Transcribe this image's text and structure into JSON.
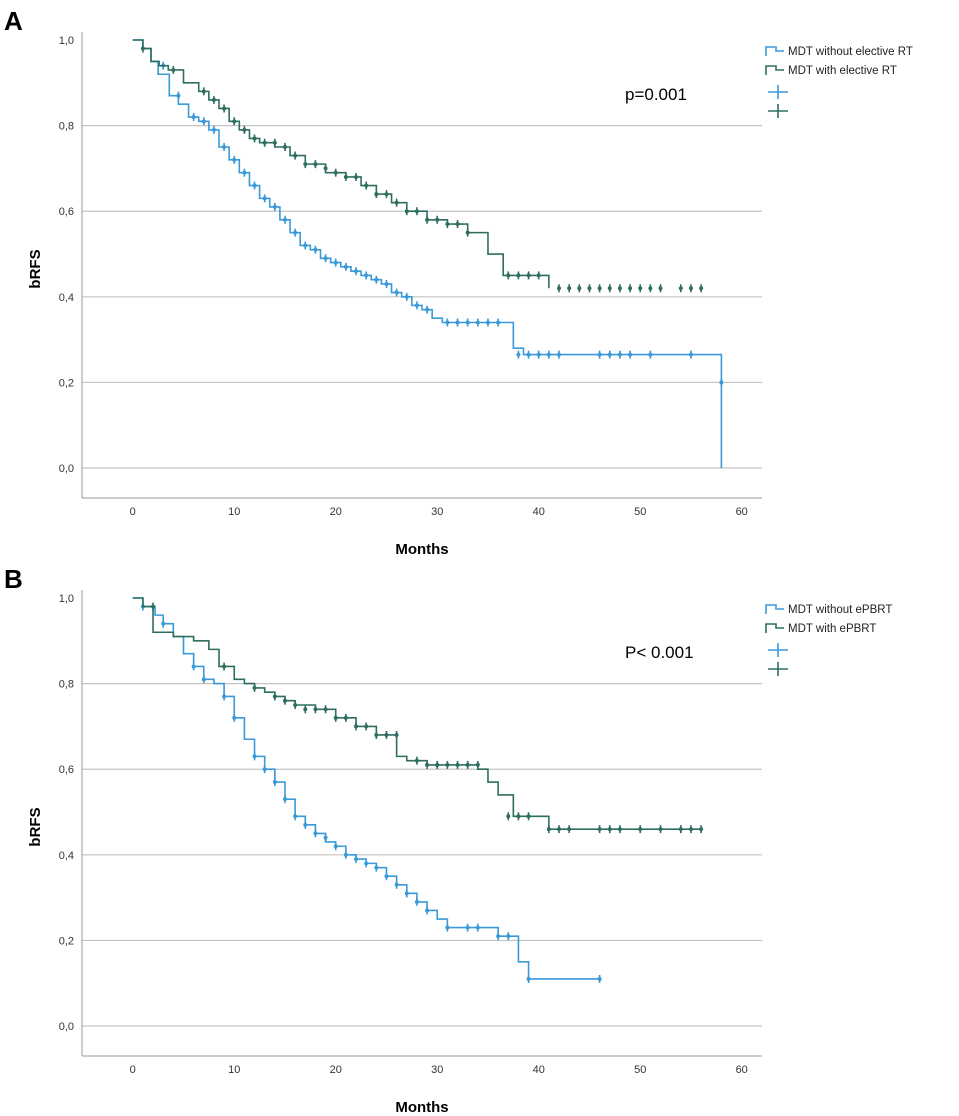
{
  "chart_data": [
    {
      "type": "line",
      "panel_label": "A",
      "xlabel": "Months",
      "ylabel": "bRFS",
      "xlim": [
        -5,
        62
      ],
      "ylim": [
        -0.07,
        1.0
      ],
      "x_ticks": [
        "0",
        "10",
        "20",
        "30",
        "40",
        "50",
        "60"
      ],
      "x_tick_values": [
        0,
        10,
        20,
        30,
        40,
        50,
        60
      ],
      "y_ticks": [
        "0,0",
        "0,2",
        "0,4",
        "0,6",
        "0,8",
        "1,0"
      ],
      "y_tick_values": [
        0.0,
        0.2,
        0.4,
        0.6,
        0.8,
        1.0
      ],
      "gridlines": "horizontal",
      "annotation": "p=0.001",
      "legend_position": "top-right",
      "series": [
        {
          "name": "MDT without elective RT",
          "color": "#3a9ad9",
          "step_x": [
            0,
            1,
            1.8,
            2.5,
            3.6,
            4.5,
            5.5,
            6.5,
            7.5,
            8.5,
            9.5,
            10.5,
            11.5,
            12.5,
            13.5,
            14.5,
            15.5,
            16.5,
            17.5,
            18.5,
            19.5,
            20.5,
            21.5,
            22.5,
            23.5,
            24.5,
            25.5,
            26.5,
            27.5,
            28.5,
            29.5,
            30.5,
            31.5,
            34,
            37.5,
            38.5,
            58,
            58
          ],
          "step_y": [
            1.0,
            0.98,
            0.95,
            0.92,
            0.87,
            0.85,
            0.82,
            0.81,
            0.79,
            0.75,
            0.72,
            0.69,
            0.66,
            0.63,
            0.61,
            0.58,
            0.55,
            0.52,
            0.51,
            0.49,
            0.48,
            0.47,
            0.46,
            0.45,
            0.44,
            0.43,
            0.41,
            0.4,
            0.38,
            0.37,
            0.35,
            0.34,
            0.34,
            0.34,
            0.28,
            0.265,
            0.265,
            0.0
          ],
          "censor_x": [
            3,
            4.5,
            6,
            7,
            8,
            9,
            10,
            11,
            12,
            13,
            14,
            15,
            16,
            17,
            18,
            19,
            20,
            21,
            22,
            23,
            24,
            25,
            26,
            27,
            28,
            29,
            31,
            32,
            33,
            34,
            35,
            36,
            38,
            39,
            40,
            41,
            42,
            46,
            47,
            48,
            49,
            51,
            55,
            58
          ],
          "censor_y": [
            0.94,
            0.87,
            0.82,
            0.81,
            0.79,
            0.75,
            0.72,
            0.69,
            0.66,
            0.63,
            0.61,
            0.58,
            0.55,
            0.52,
            0.51,
            0.49,
            0.48,
            0.47,
            0.46,
            0.45,
            0.44,
            0.43,
            0.41,
            0.4,
            0.38,
            0.37,
            0.34,
            0.34,
            0.34,
            0.34,
            0.34,
            0.34,
            0.265,
            0.265,
            0.265,
            0.265,
            0.265,
            0.265,
            0.265,
            0.265,
            0.265,
            0.265,
            0.265,
            0.2
          ]
        },
        {
          "name": "MDT with elective RT",
          "color": "#2e6e60",
          "step_x": [
            0,
            1,
            1.8,
            2.6,
            3.5,
            5,
            6.5,
            7.5,
            8.5,
            9.5,
            10.5,
            11.5,
            12.5,
            14,
            15.5,
            17,
            19,
            21,
            22.5,
            24,
            25.5,
            27,
            29,
            31,
            33,
            35,
            36.5,
            41
          ],
          "step_y": [
            1.0,
            0.98,
            0.95,
            0.94,
            0.93,
            0.9,
            0.88,
            0.86,
            0.84,
            0.81,
            0.79,
            0.77,
            0.76,
            0.75,
            0.73,
            0.71,
            0.69,
            0.68,
            0.66,
            0.64,
            0.62,
            0.6,
            0.58,
            0.57,
            0.55,
            0.5,
            0.45,
            0.42
          ],
          "censor_x": [
            1,
            4,
            7,
            8,
            9,
            10,
            11,
            12,
            13,
            14,
            15,
            16,
            17,
            18,
            19,
            20,
            21,
            22,
            23,
            24,
            25,
            26,
            27,
            28,
            29,
            30,
            31,
            32,
            33,
            37,
            38,
            39,
            40,
            42,
            43,
            44,
            45,
            46,
            47,
            48,
            49,
            50,
            51,
            52,
            54,
            55,
            56
          ],
          "censor_y": [
            0.98,
            0.93,
            0.88,
            0.86,
            0.84,
            0.81,
            0.79,
            0.77,
            0.76,
            0.76,
            0.75,
            0.73,
            0.71,
            0.71,
            0.7,
            0.69,
            0.68,
            0.68,
            0.66,
            0.64,
            0.64,
            0.62,
            0.6,
            0.6,
            0.58,
            0.58,
            0.57,
            0.57,
            0.55,
            0.45,
            0.45,
            0.45,
            0.45,
            0.42,
            0.42,
            0.42,
            0.42,
            0.42,
            0.42,
            0.42,
            0.42,
            0.42,
            0.42,
            0.42,
            0.42,
            0.42,
            0.42
          ]
        }
      ]
    },
    {
      "type": "line",
      "panel_label": "B",
      "xlabel": "Months",
      "ylabel": "bRFS",
      "xlim": [
        -5,
        62
      ],
      "ylim": [
        -0.07,
        1.0
      ],
      "x_ticks": [
        "0",
        "10",
        "20",
        "30",
        "40",
        "50",
        "60"
      ],
      "x_tick_values": [
        0,
        10,
        20,
        30,
        40,
        50,
        60
      ],
      "y_ticks": [
        "0,0",
        "0,2",
        "0,4",
        "0,6",
        "0,8",
        "1,0"
      ],
      "y_tick_values": [
        0.0,
        0.2,
        0.4,
        0.6,
        0.8,
        1.0
      ],
      "gridlines": "horizontal",
      "annotation": "P< 0.001",
      "legend_position": "top-right",
      "series": [
        {
          "name": "MDT without ePBRT",
          "color": "#3a9ad9",
          "step_x": [
            0,
            1,
            2.2,
            3,
            4,
            5,
            6,
            7,
            8,
            9,
            10,
            11,
            12,
            13,
            14,
            15,
            16,
            17,
            18,
            19,
            20,
            21,
            22,
            23,
            24,
            25,
            26,
            27,
            28,
            29,
            30,
            31,
            32,
            34,
            36,
            38,
            38.5,
            39,
            46
          ],
          "step_y": [
            1.0,
            0.98,
            0.96,
            0.94,
            0.91,
            0.87,
            0.84,
            0.81,
            0.8,
            0.77,
            0.72,
            0.67,
            0.63,
            0.6,
            0.57,
            0.53,
            0.49,
            0.47,
            0.45,
            0.43,
            0.42,
            0.4,
            0.39,
            0.38,
            0.37,
            0.35,
            0.33,
            0.31,
            0.29,
            0.27,
            0.25,
            0.23,
            0.23,
            0.23,
            0.21,
            0.15,
            0.15,
            0.11,
            0.11
          ],
          "censor_x": [
            1,
            3,
            6,
            7,
            9,
            10,
            12,
            13,
            14,
            15,
            16,
            17,
            18,
            19,
            20,
            21,
            22,
            23,
            24,
            25,
            26,
            27,
            28,
            29,
            31,
            33,
            34,
            36,
            37,
            39,
            46
          ],
          "censor_y": [
            0.98,
            0.94,
            0.84,
            0.81,
            0.77,
            0.72,
            0.63,
            0.6,
            0.57,
            0.53,
            0.49,
            0.47,
            0.45,
            0.44,
            0.42,
            0.4,
            0.39,
            0.38,
            0.37,
            0.35,
            0.33,
            0.31,
            0.29,
            0.27,
            0.23,
            0.23,
            0.23,
            0.21,
            0.21,
            0.11,
            0.11
          ]
        },
        {
          "name": "MDT with ePBRT",
          "color": "#2e6e60",
          "step_x": [
            0,
            1,
            2,
            4,
            6,
            7.5,
            8.5,
            10,
            11,
            12,
            13,
            14,
            15,
            16,
            18,
            20,
            22,
            24,
            26,
            27,
            29,
            31,
            34,
            35,
            36,
            37.5,
            41,
            56
          ],
          "step_y": [
            1.0,
            0.98,
            0.92,
            0.91,
            0.9,
            0.88,
            0.84,
            0.81,
            0.8,
            0.79,
            0.78,
            0.77,
            0.76,
            0.75,
            0.74,
            0.72,
            0.7,
            0.68,
            0.63,
            0.62,
            0.61,
            0.61,
            0.6,
            0.57,
            0.54,
            0.49,
            0.46,
            0.46
          ],
          "censor_x": [
            2,
            9,
            12,
            14,
            15,
            16,
            17,
            18,
            19,
            20,
            21,
            22,
            23,
            24,
            25,
            26,
            28,
            29,
            30,
            31,
            32,
            33,
            34,
            37,
            38,
            39,
            41,
            42,
            43,
            46,
            47,
            48,
            50,
            52,
            54,
            55,
            56
          ],
          "censor_y": [
            0.98,
            0.84,
            0.79,
            0.77,
            0.76,
            0.75,
            0.74,
            0.74,
            0.74,
            0.72,
            0.72,
            0.7,
            0.7,
            0.68,
            0.68,
            0.68,
            0.62,
            0.61,
            0.61,
            0.61,
            0.61,
            0.61,
            0.61,
            0.49,
            0.49,
            0.49,
            0.46,
            0.46,
            0.46,
            0.46,
            0.46,
            0.46,
            0.46,
            0.46,
            0.46,
            0.46,
            0.46
          ]
        }
      ]
    }
  ]
}
